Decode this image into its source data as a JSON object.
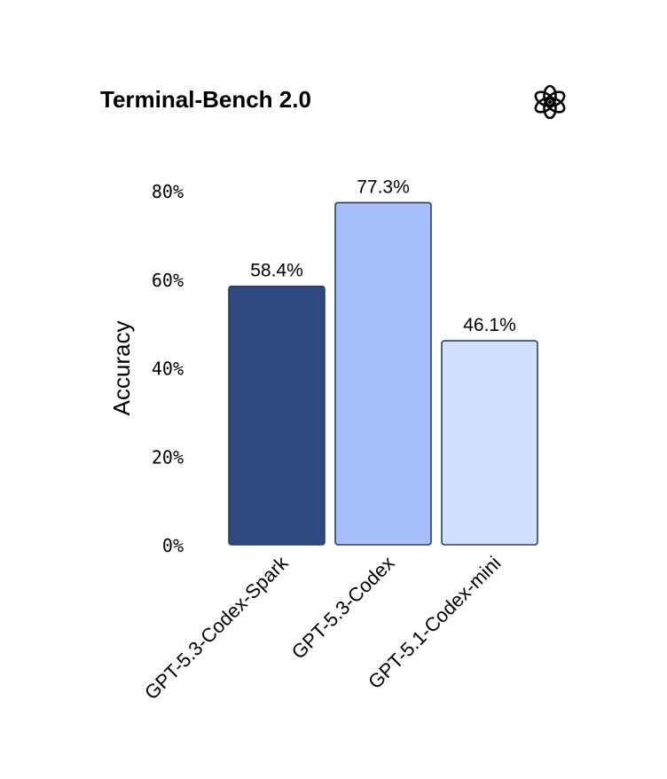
{
  "chart_data": {
    "type": "bar",
    "title": "Terminal-Bench 2.0",
    "ylabel": "Accuracy",
    "xlabel": "",
    "categories": [
      "GPT-5.3-Codex-Spark",
      "GPT-5.3-Codex",
      "GPT-5.1-Codex-mini"
    ],
    "values": [
      58.4,
      77.3,
      46.1
    ],
    "value_labels": [
      "58.4%",
      "77.3%",
      "46.1%"
    ],
    "ylim": [
      0,
      80
    ],
    "yticks": [
      0,
      20,
      40,
      60,
      80
    ],
    "ytick_labels": [
      "0%",
      "20%",
      "40%",
      "60%",
      "80%"
    ],
    "bar_colors": [
      "#2f4a80",
      "#a6bffa",
      "#d0e0fc"
    ],
    "bar_edge_color": "#2a3f6e",
    "grid": false,
    "logo": "openai-logo-icon"
  }
}
